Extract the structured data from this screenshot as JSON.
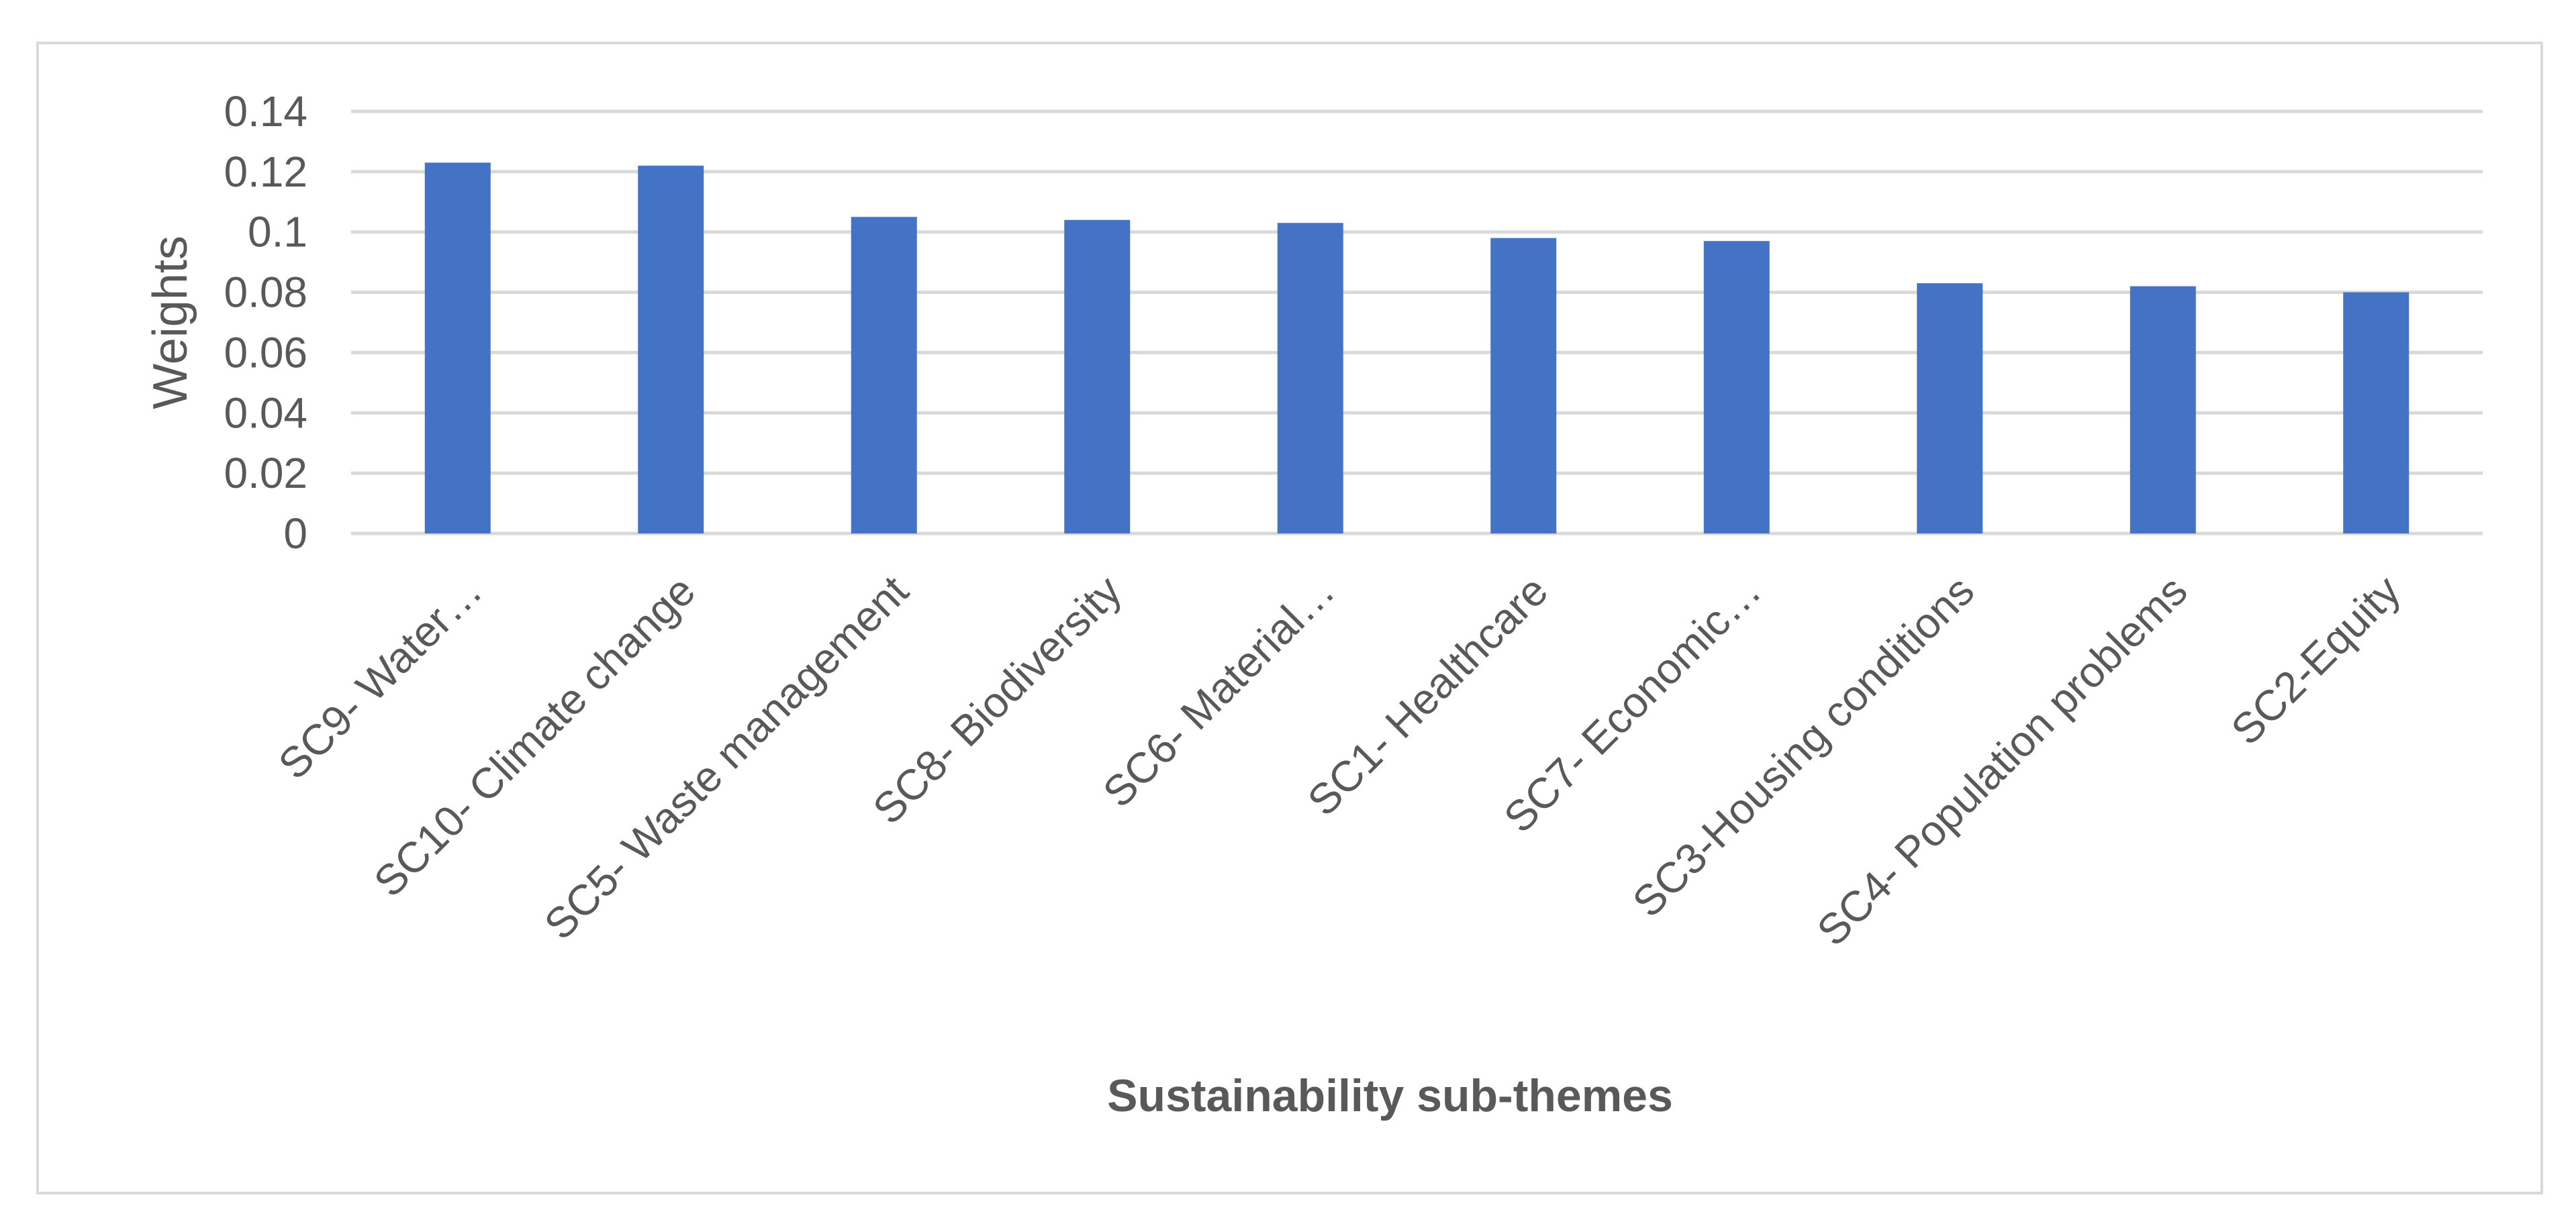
{
  "chart_data": {
    "type": "bar",
    "title": "",
    "xlabel": "Sustainability sub-themes",
    "ylabel": "Weights",
    "categories": [
      "SC9- Water…",
      "SC10- Climate change",
      "SC5- Waste management",
      "SC8- Biodiversity",
      "SC6- Material…",
      "SC1- Healthcare",
      "SC7- Economic…",
      "SC3-Housing conditions",
      "SC4- Population problems",
      "SC2-Equity"
    ],
    "values": [
      0.123,
      0.122,
      0.105,
      0.104,
      0.103,
      0.098,
      0.097,
      0.083,
      0.082,
      0.08
    ],
    "ylim": [
      0,
      0.14
    ],
    "yticks": [
      "0",
      "0.02",
      "0.04",
      "0.06",
      "0.08",
      "0.1",
      "0.12",
      "0.14"
    ],
    "yticks_values": [
      0,
      0.02,
      0.04,
      0.06,
      0.08,
      0.1,
      0.12,
      0.14
    ],
    "grid": true,
    "legend": "none",
    "colors": {
      "bar": "#4472c4",
      "grid": "#d9d9d9",
      "text": "#595959",
      "frame": "#d9d9d9"
    }
  }
}
